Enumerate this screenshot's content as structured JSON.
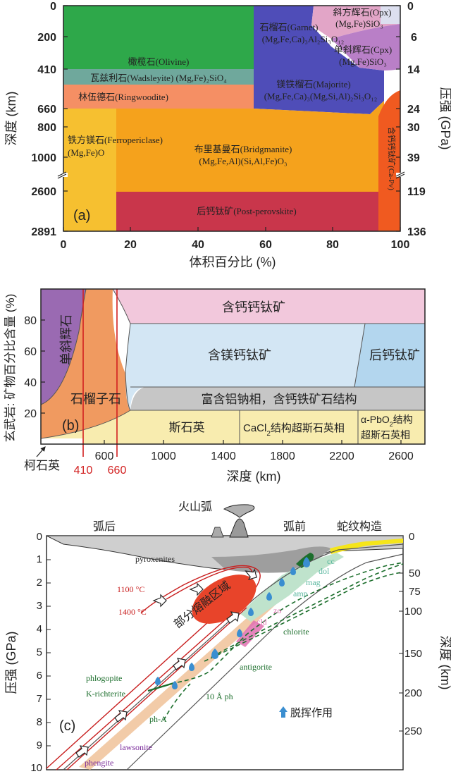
{
  "panel_a": {
    "panel_label": "(a)",
    "y_left_label": "深度 (km)",
    "y_right_label": "压强 (GPa)",
    "x_label": "体积百分比 (%)",
    "x_ticks": [
      "0",
      "20",
      "40",
      "60",
      "80",
      "100"
    ],
    "left_ticks": [
      "0",
      "200",
      "410",
      "660",
      "800",
      "1000",
      "2600",
      "2891"
    ],
    "right_ticks": [
      "0",
      "6",
      "14",
      "24",
      "30",
      "39",
      "119",
      "136"
    ],
    "colors": {
      "olivine": "#2ea84a",
      "wadsleyite": "#6fa89c",
      "ringwoodite": "#f58f64",
      "garnet": "#4f4db8",
      "opx": "#e2a5c7",
      "cpx": "#b97fc7",
      "bridgmanite": "#f5a21c",
      "ferropericlase": "#f6c030",
      "postperovskite": "#c9364b",
      "capv": "#f05a20"
    },
    "labels": {
      "olivine": "橄榄石(Olivine)",
      "wadsleyite": "瓦兹利石(Wadsleyite) (Mg,Fe)₂SiO₄",
      "ringwoodite": "林伍德石(Ringwoodite)",
      "garnet_1": "石榴石(Garnet)",
      "garnet_2": "(Mg,Fe,Ca)₃Al₂Si₃O₁₂",
      "opx_1": "斜方辉石(Opx)",
      "opx_2": "(Mg,Fe)SiO₃",
      "cpx_1": "单斜辉石(Cpx)",
      "cpx_2": "(Mg,Fe)SiO₃",
      "majorite_1": "镁铁榴石(Majorite)",
      "majorite_2": "(Mg,Fe,Ca)₃(Mg,Si,Al)₂Si₃O₁₂",
      "ferropericlase_1": "铁方镁石(Ferropericlase)",
      "ferropericlase_2": "(Mg,Fe)O",
      "bridgmanite_1": "布里基曼石(Bridgmanite)",
      "bridgmanite_2": "(Mg,Fe,Al)(Si,Al,Fe)O₃",
      "postperovskite": "后钙钛矿(Post-perovskite)",
      "capv": "含钙钙钛矿(Ca-Pv)"
    }
  },
  "panel_b": {
    "panel_label": "(b)",
    "y_label": "玄武岩: 矿物百分比含量 (%)",
    "x_label": "深度 (km)",
    "x_ticks": [
      "600",
      "1000",
      "1400",
      "1800",
      "2200",
      "2600"
    ],
    "y_ticks": [
      "20",
      "40",
      "60",
      "80"
    ],
    "marker_410": "410",
    "marker_660": "660",
    "coesite_label": "柯石英",
    "colors": {
      "cpx": "#9a6ab2",
      "garnet": "#f09a60",
      "capv": "#f2c8dc",
      "mgpv": "#d3e6f4",
      "postpv": "#b3d6ee",
      "alphase": "#c6c6c6",
      "stishovite": "#f8ecaf",
      "marker": "#d22020"
    },
    "labels": {
      "cpx": "单斜辉石",
      "garnet": "石榴子石",
      "capv": "含钙钙钛矿",
      "mgpv": "含镁钙钛矿",
      "postpv": "后钙钛矿",
      "alphase": "富含铝钠相，含钙铁矿石结构",
      "stishovite": "斯石英",
      "cacl2_1": "CaCl",
      "cacl2_2": "结构超斯石英相",
      "apbo2_1": "α-PbO",
      "apbo2_2": "结构",
      "apbo2_3": "超斯石英相"
    }
  },
  "panel_c": {
    "panel_label": "(c)",
    "y_left_label": "压强 (GPa)",
    "y_right_label": "深度 (km)",
    "left_ticks": [
      "0",
      "1",
      "2",
      "3",
      "4",
      "5",
      "6",
      "7",
      "8",
      "9",
      "10"
    ],
    "right_ticks": [
      "0",
      "50",
      "75",
      "100",
      "150",
      "200",
      "250"
    ],
    "top_labels": {
      "backarc": "弧后",
      "volcanic_arc": "火山弧",
      "forearc": "弧前",
      "serpentine": "蛇纹构造"
    },
    "iso_1100": "1100 °C",
    "iso_1400": "1400 °C",
    "partial_melt": "部分熔融区域",
    "mineral_labels": {
      "pyroxenites": "pyroxenites",
      "cc": "cc",
      "dol": "dol",
      "mag": "mag",
      "amp": "amp",
      "zo": "zo",
      "cld": "cld",
      "chlorite": "chlorite",
      "antigorite": "antigorite",
      "phlogopite": "phlogopite",
      "k_richterite": "K-richterite",
      "ten_a_ph": "10 Å ph",
      "ph_a": "ph-A",
      "lawsonite": "lawsonite",
      "phengite": "phengite"
    },
    "dehydration_label": "脱挥作用",
    "colors": {
      "melt": "#e8442a",
      "green_dark": "#1c6e2c",
      "teal": "#5cb8a0",
      "pink": "#e070b0",
      "purple": "#7a2a9a",
      "drop": "#3a8ed0",
      "slab": "#f2cba8",
      "red": "#c81e1e",
      "yellow": "#f5e51a"
    }
  }
}
